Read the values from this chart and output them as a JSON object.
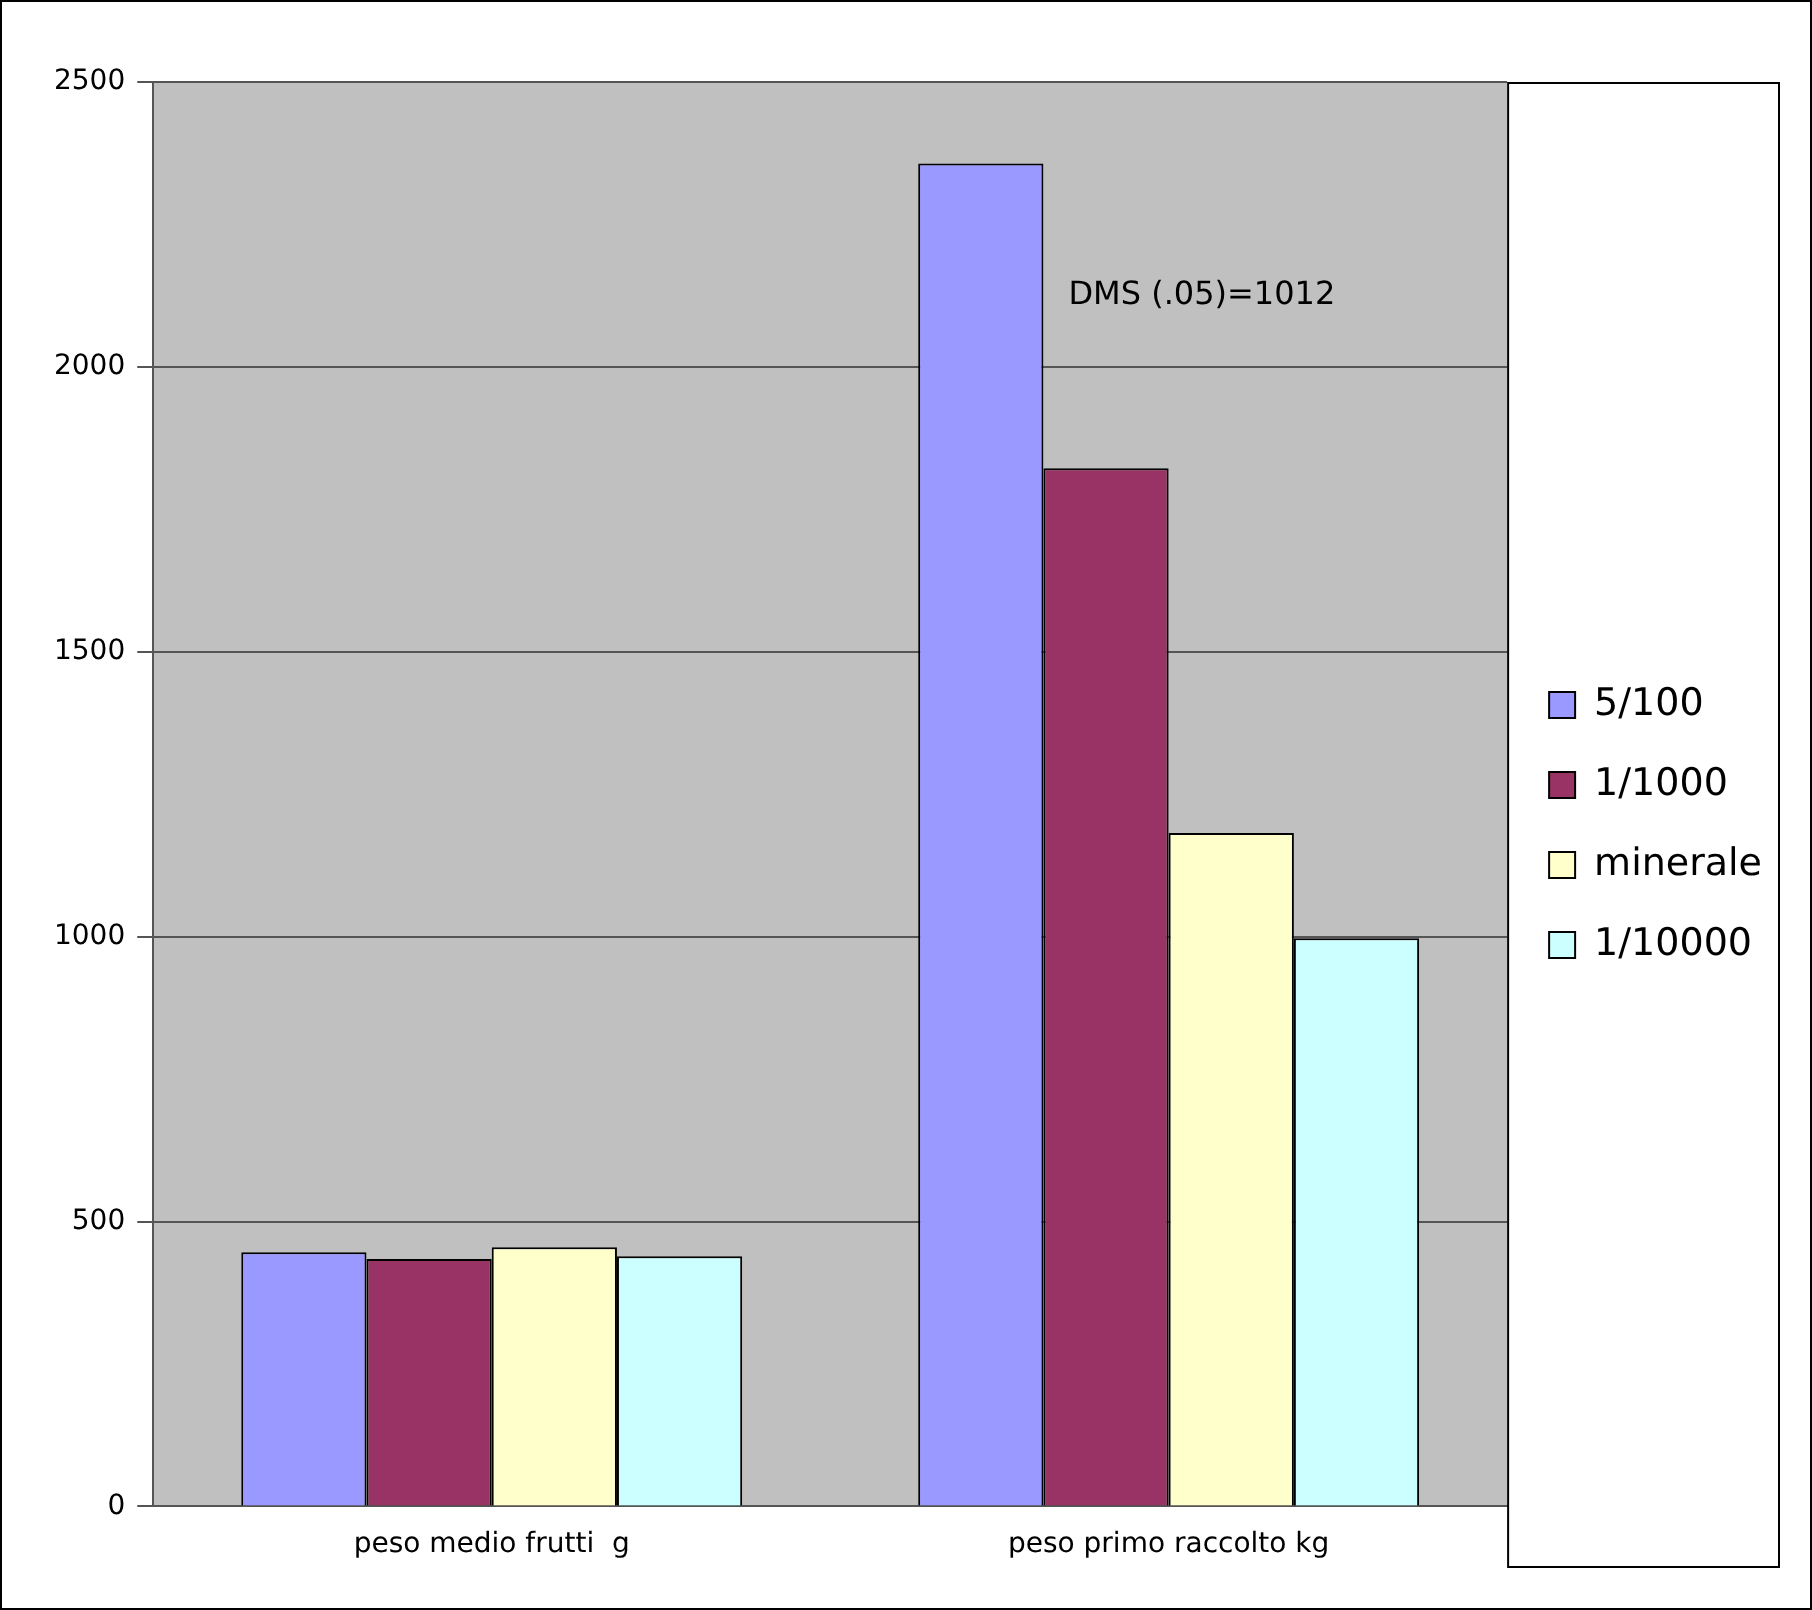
{
  "chart_data": {
    "type": "bar",
    "categories": [
      "peso medio frutti  g",
      "peso primo raccolto kg"
    ],
    "series": [
      {
        "name": "5/100",
        "color": "#9999ff",
        "values": [
          446,
          2357
        ]
      },
      {
        "name": "1/1000",
        "color": "#993366",
        "values": [
          434,
          1822
        ]
      },
      {
        "name": "minerale",
        "color": "#ffffcc",
        "values": [
          455,
          1182
        ]
      },
      {
        "name": "1/10000",
        "color": "#ccffff",
        "values": [
          439,
          997
        ]
      }
    ],
    "ylim": [
      0,
      2500
    ],
    "yticks": [
      0,
      500,
      1000,
      1500,
      2000,
      2500
    ],
    "grid": "y",
    "legend": "right",
    "annotations": [
      "DMS (.05)=1012"
    ]
  }
}
